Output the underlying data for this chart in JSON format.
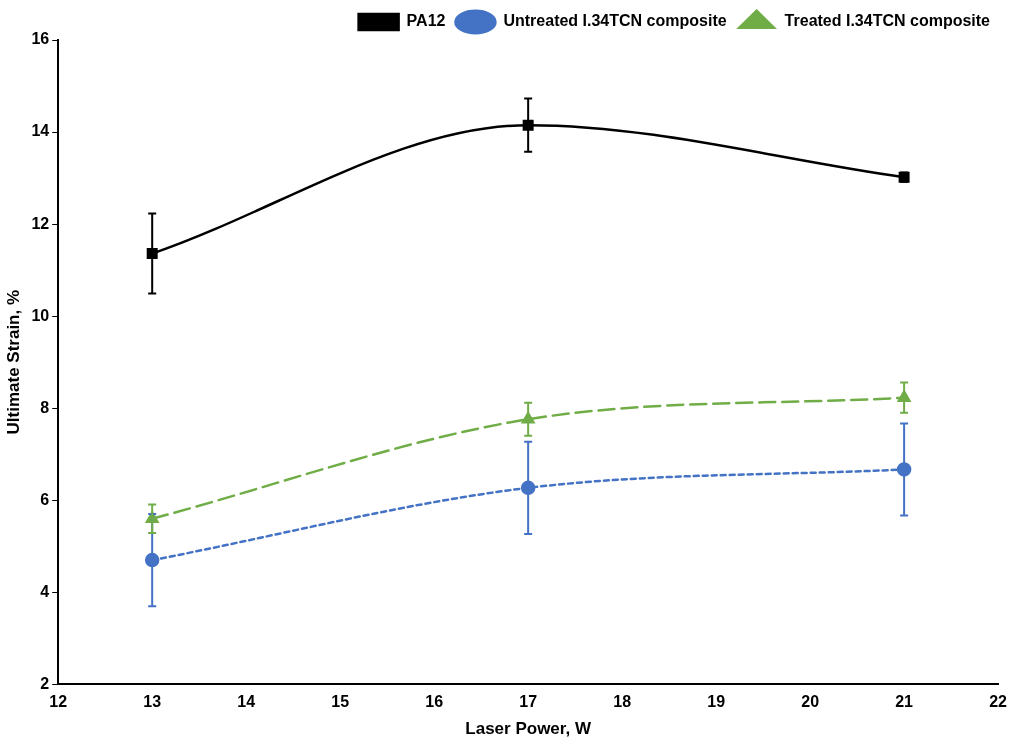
{
  "chart_data": {
    "type": "line",
    "xlabel": "Laser Power, W",
    "ylabel": "Ultimate Strain, %",
    "x": [
      13,
      17,
      21
    ],
    "series": [
      {
        "name": "PA12",
        "color": "#000000",
        "values": [
          11.36,
          14.15,
          13.02
        ],
        "errors": [
          0.87,
          0.58,
          0.1
        ],
        "marker": "square",
        "line_style": "solid"
      },
      {
        "name": "Untreated I.34TCN composite",
        "color": "#4472c4",
        "values": [
          4.7,
          6.27,
          6.67
        ],
        "errors": [
          1.0,
          1.0,
          1.0
        ],
        "marker": "circle",
        "line_style": "dotted"
      },
      {
        "name": "Treated I.34TCN composite",
        "color": "#70ad47",
        "values": [
          5.6,
          7.76,
          8.23
        ],
        "errors": [
          0.31,
          0.36,
          0.33
        ],
        "marker": "triangle",
        "line_style": "dashed"
      }
    ],
    "xlim": [
      12,
      22
    ],
    "xticks": [
      12,
      13,
      14,
      15,
      16,
      17,
      18,
      19,
      20,
      21,
      22
    ],
    "ylim": [
      2,
      16
    ],
    "yticks": [
      2,
      4,
      6,
      8,
      10,
      12,
      14,
      16
    ],
    "grid": false,
    "legend": "top"
  }
}
